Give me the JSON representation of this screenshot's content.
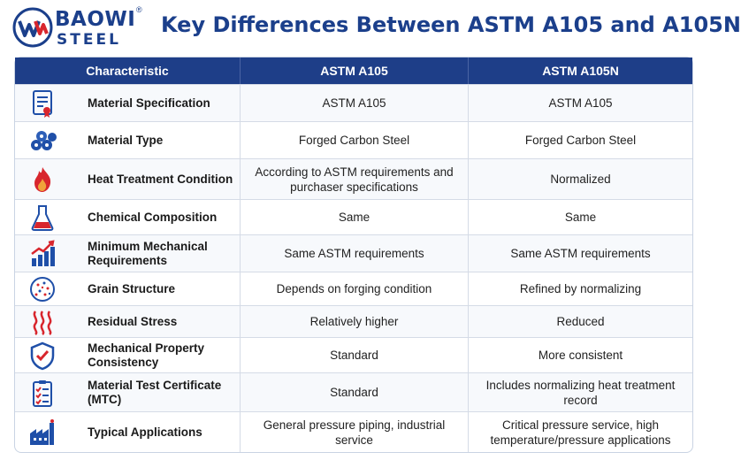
{
  "brand": {
    "line1": "BAOWI",
    "line2": "STEEL",
    "reg": "®"
  },
  "title": "Key Differences Between ASTM A105 and A105N",
  "columns": [
    "Characteristic",
    "ASTM A105",
    "ASTM A105N"
  ],
  "colors": {
    "navy": "#1e3e88",
    "red": "#d8262d",
    "blue": "#1f4fa8"
  },
  "rows": [
    {
      "icon": "certificate-icon",
      "label": "Material Specification",
      "a105": "ASTM A105",
      "a105n": "ASTM A105"
    },
    {
      "icon": "steel-bars-icon",
      "label": "Material Type",
      "a105": "Forged Carbon Steel",
      "a105n": "Forged Carbon Steel"
    },
    {
      "icon": "flame-icon",
      "label": "Heat Treatment Condition",
      "a105": "According to ASTM requirements and purchaser specifications",
      "a105n": "Normalized"
    },
    {
      "icon": "flask-icon",
      "label": "Chemical Composition",
      "a105": "Same",
      "a105n": "Same"
    },
    {
      "icon": "rising-chart-icon",
      "label": "Minimum Mechanical Requirements",
      "a105": "Same ASTM requirements",
      "a105n": "Same ASTM requirements"
    },
    {
      "icon": "grain-icon",
      "label": "Grain Structure",
      "a105": "Depends on forging condition",
      "a105n": "Refined by normalizing"
    },
    {
      "icon": "heat-waves-icon",
      "label": "Residual Stress",
      "a105": "Relatively higher",
      "a105n": "Reduced"
    },
    {
      "icon": "shield-check-icon",
      "label": "Mechanical Property Consistency",
      "a105": "Standard",
      "a105n": "More consistent"
    },
    {
      "icon": "clipboard-checklist-icon",
      "label": "Material Test Certificate (MTC)",
      "a105": "Standard",
      "a105n": "Includes normalizing heat treatment record"
    },
    {
      "icon": "factory-icon",
      "label": "Typical Applications",
      "a105": "General pressure piping, industrial service",
      "a105n": "Critical pressure service, high temperature/pressure applications"
    }
  ]
}
